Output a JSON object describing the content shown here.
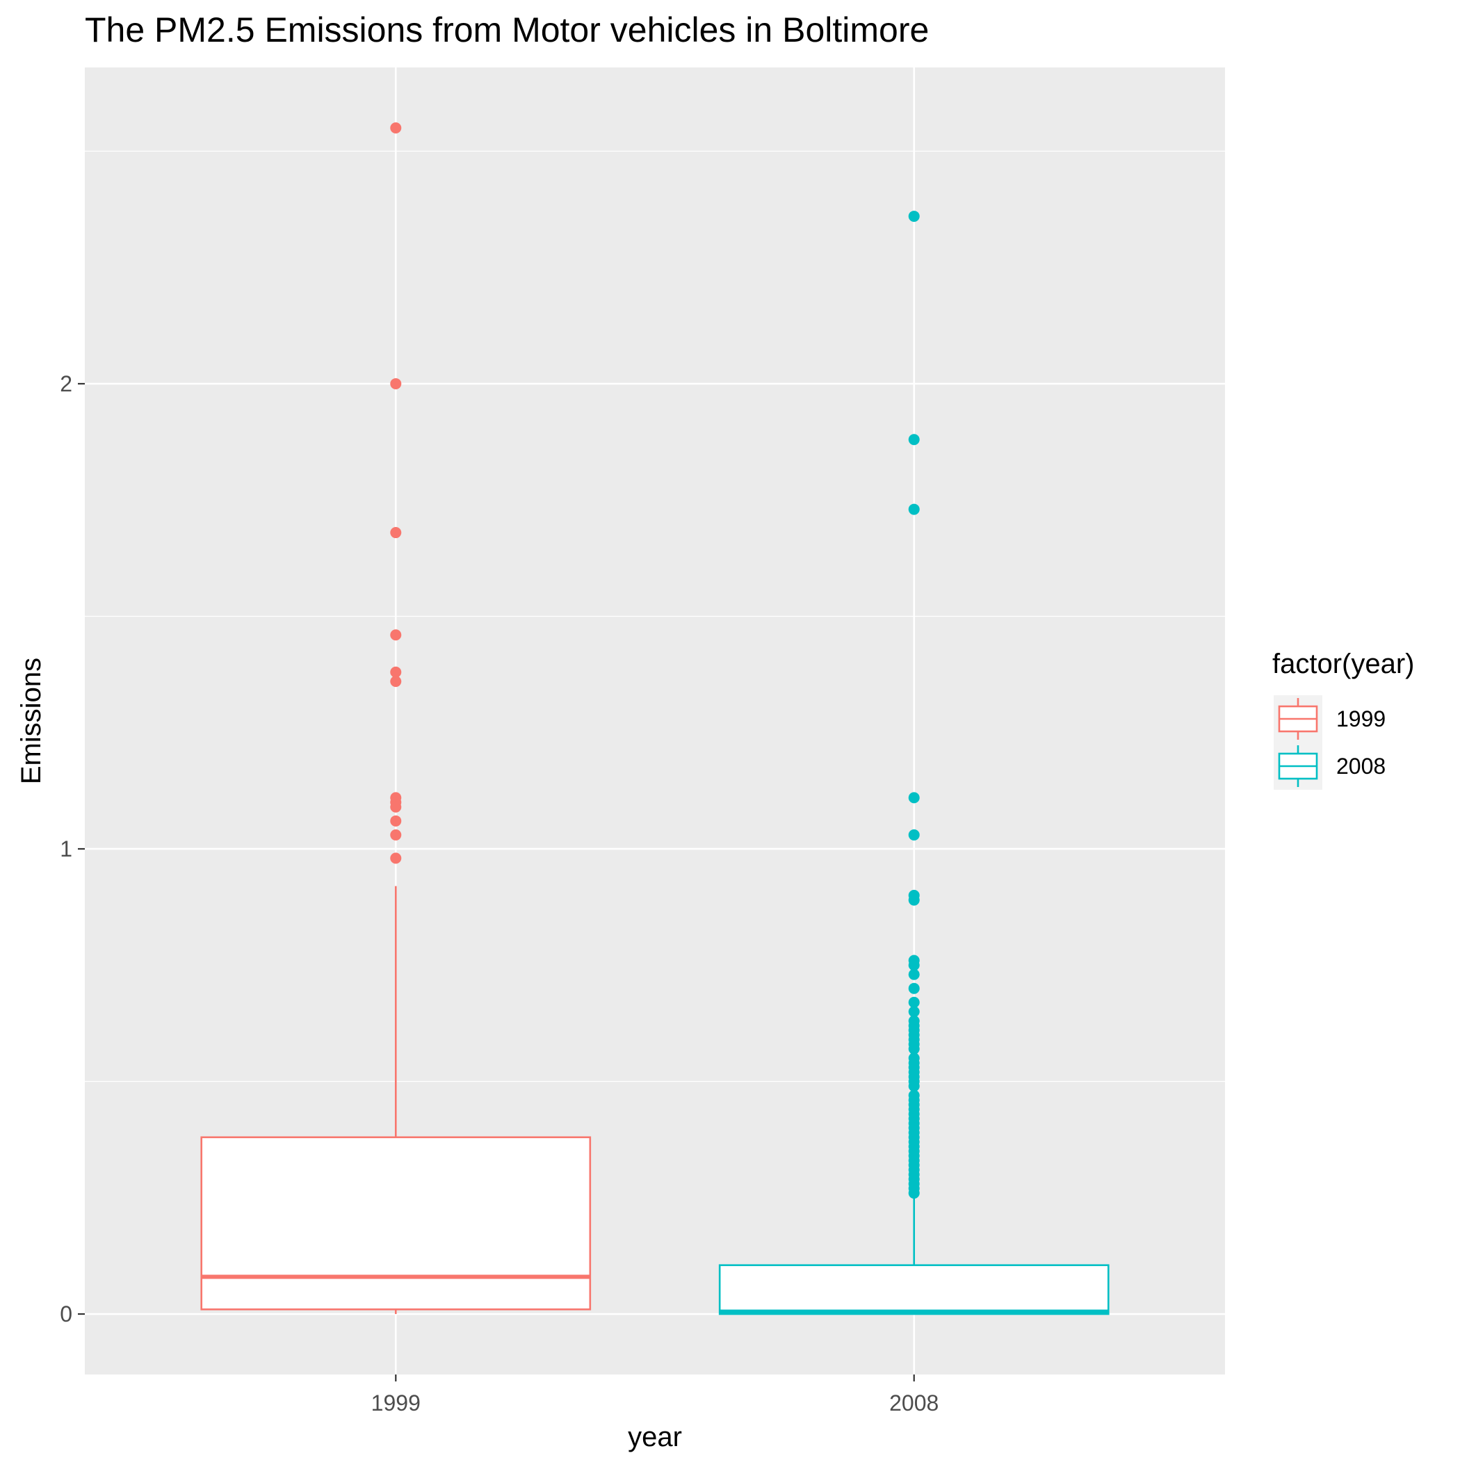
{
  "chart_data": {
    "type": "boxplot",
    "title": "The PM2.5 Emissions from Motor vehicles in Boltimore",
    "xlabel": "year",
    "ylabel": "Emissions",
    "categories": [
      "1999",
      "2008"
    ],
    "ylim": [
      -0.13,
      2.68
    ],
    "y_ticks": [
      0,
      1,
      2
    ],
    "y_tick_labels": [
      "0",
      "1",
      "2"
    ],
    "grid": true,
    "panel_background": "#ebebeb",
    "grid_color": "#ffffff",
    "legend": {
      "title": "factor(year)",
      "position": "right",
      "entries": [
        {
          "label": "1999",
          "color": "#F8766D"
        },
        {
          "label": "2008",
          "color": "#00BFC4"
        }
      ]
    },
    "series": [
      {
        "category": "1999",
        "color": "#F8766D",
        "q1": 0.01,
        "median": 0.08,
        "q3": 0.38,
        "whisker_low": 0.0,
        "whisker_high": 0.92,
        "outliers": [
          2.55,
          2.0,
          1.68,
          1.46,
          1.38,
          1.36,
          1.11,
          1.1,
          1.09,
          1.06,
          1.03,
          0.98
        ]
      },
      {
        "category": "2008",
        "color": "#00BFC4",
        "q1": 0.0,
        "median": 0.005,
        "q3": 0.105,
        "whisker_low": 0.0,
        "whisker_high": 0.25,
        "outliers": [
          2.36,
          1.88,
          1.73,
          1.11,
          1.03,
          0.9,
          0.89,
          0.76,
          0.75,
          0.73,
          0.7,
          0.67,
          0.65,
          0.63,
          0.62,
          0.61,
          0.6,
          0.59,
          0.58,
          0.57,
          0.55,
          0.54,
          0.53,
          0.52,
          0.51,
          0.5,
          0.49,
          0.47,
          0.46,
          0.45,
          0.44,
          0.43,
          0.42,
          0.41,
          0.4,
          0.39,
          0.38,
          0.37,
          0.36,
          0.35,
          0.34,
          0.33,
          0.32,
          0.31,
          0.3,
          0.29,
          0.28,
          0.27,
          0.26
        ]
      }
    ]
  }
}
